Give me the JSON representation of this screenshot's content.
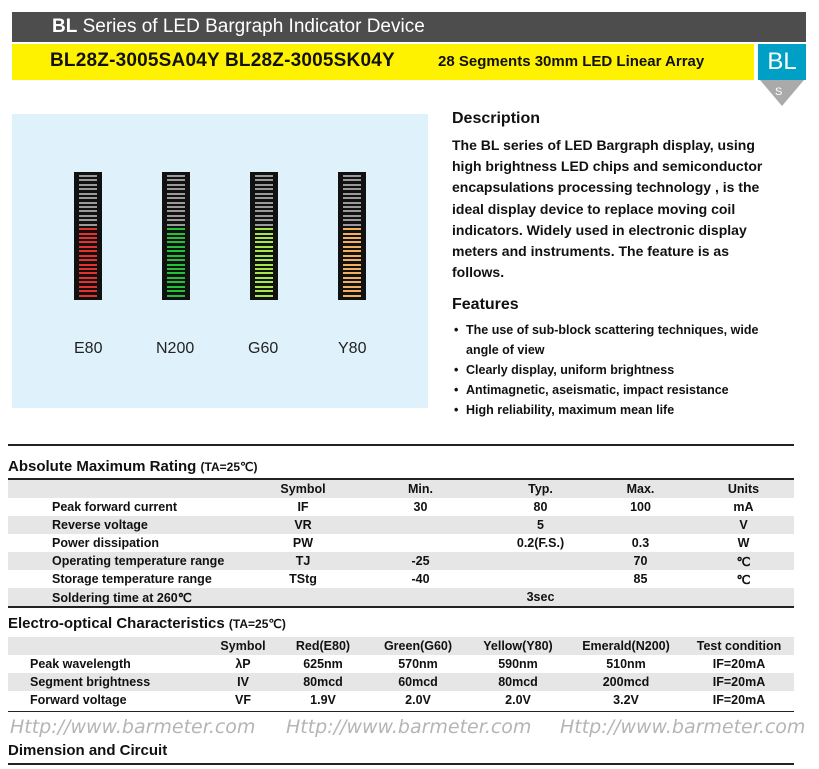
{
  "header": {
    "title_bold": "BL",
    "title_rest": "Series of LED Bargraph Indicator Device",
    "models": "BL28Z-3005SA04Y  BL28Z-3005SK04Y",
    "subtitle": "28 Segments 30mm LED Linear Array",
    "badge": "BL",
    "badge_sub": "S"
  },
  "colors": {
    "header_gray": "#4d4d4d",
    "header_yellow": "#fff200",
    "badge_blue": "#00a0c6",
    "panel_bg": "#dff1fa",
    "table_shade": "#e6e6e6"
  },
  "product_images": [
    {
      "label": "E80",
      "lit_color": "#e8312f",
      "lit_fraction": 0.57
    },
    {
      "label": "N200",
      "lit_color": "#21c13c",
      "lit_fraction": 0.57
    },
    {
      "label": "G60",
      "lit_color": "#a6e64a",
      "lit_fraction": 0.57
    },
    {
      "label": "Y80",
      "lit_color": "#f0b060",
      "lit_fraction": 0.57
    }
  ],
  "description": {
    "title": "Description",
    "body": "The BL series of LED Bargraph display, using high brightness LED chips and semiconductor encapsulations processing technology , is the ideal display device to replace moving coil indicators. Widely used in electronic display meters and instruments. The feature is as follows."
  },
  "features": {
    "title": "Features",
    "items": [
      "The use of sub-block scattering techniques, wide angle of view",
      "Clearly display, uniform brightness",
      "Antimagnetic, aseismatic, impact resistance",
      "High reliability, maximum mean life"
    ]
  },
  "abs_max": {
    "title": "Absolute Maximum Rating",
    "condition": "(TA=25℃)",
    "headers": [
      "",
      "Symbol",
      "Min.",
      "Typ.",
      "Max.",
      "Units"
    ],
    "rows": [
      [
        "Peak forward current",
        "IF",
        "30",
        "80",
        "100",
        "mA"
      ],
      [
        "Reverse voltage",
        "VR",
        "",
        "5",
        "",
        "V"
      ],
      [
        "Power dissipation",
        "PW",
        "",
        "0.2(F.S.)",
        "0.3",
        "W"
      ],
      [
        "Operating temperature range",
        "TJ",
        "-25",
        "",
        "70",
        "℃"
      ],
      [
        "Storage temperature range",
        "TStg",
        "-40",
        "",
        "85",
        "℃"
      ],
      [
        "Soldering time at 260℃",
        "",
        "",
        "3sec",
        "",
        ""
      ]
    ]
  },
  "electro": {
    "title": "Electro-optical Characteristics",
    "condition": "(TA=25℃)",
    "headers": [
      "",
      "Symbol",
      "Red(E80)",
      "Green(G60)",
      "Yellow(Y80)",
      "Emerald(N200)",
      "Test condition"
    ],
    "rows": [
      [
        "Peak wavelength",
        "λP",
        "625nm",
        "570nm",
        "590nm",
        "510nm",
        "IF=20mA"
      ],
      [
        "Segment brightness",
        "IV",
        "80mcd",
        "60mcd",
        "80mcd",
        "200mcd",
        "IF=20mA"
      ],
      [
        "Forward voltage",
        "VF",
        "1.9V",
        "2.0V",
        "2.0V",
        "3.2V",
        "IF=20mA"
      ]
    ]
  },
  "urls": [
    "Http://www.barmeter.com",
    "Http://www.barmeter.com",
    "Http://www.barmeter.com"
  ],
  "dimension_title": "Dimension and Circuit"
}
